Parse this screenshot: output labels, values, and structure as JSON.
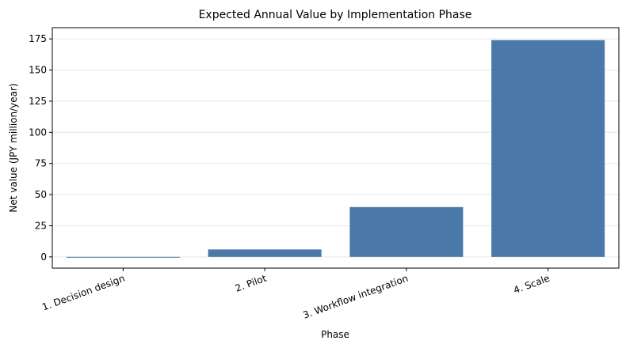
{
  "chart_data": {
    "type": "bar",
    "title": "Expected Annual Value by Implementation Phase",
    "xlabel": "Phase",
    "ylabel": "Net value (JPY million/year)",
    "categories": [
      "1. Decision design",
      "2. Pilot",
      "3. Workflow integration",
      "4. Scale"
    ],
    "values": [
      -0.5,
      6,
      40,
      174
    ],
    "ylim": [
      -9,
      184
    ],
    "yticks": [
      0,
      25,
      50,
      75,
      100,
      125,
      150,
      175
    ],
    "grid": "horizontal",
    "legend": "none",
    "bar_color": "#4a78a9",
    "grid_color": "#e6e6e6"
  }
}
